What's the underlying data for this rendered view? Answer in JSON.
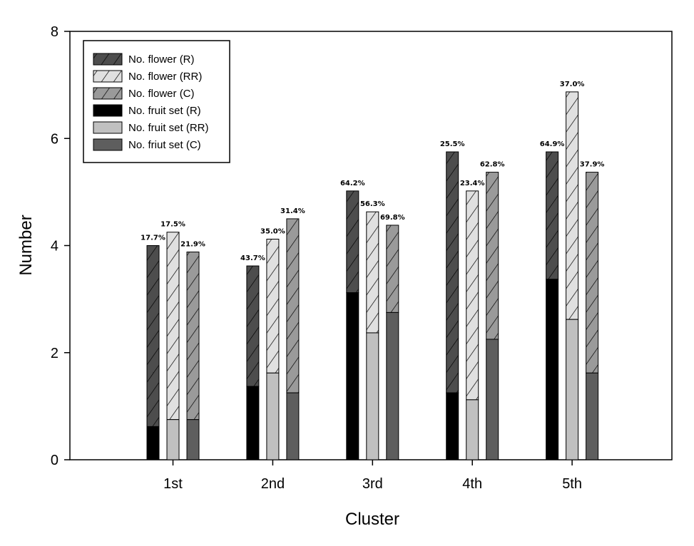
{
  "chart_data": {
    "type": "bar",
    "stacked": "overlay",
    "categories": [
      "1st",
      "2nd",
      "3rd",
      "4th",
      "5th"
    ],
    "xlabel": "Cluster",
    "ylabel": "Number",
    "ylim": [
      0,
      8
    ],
    "yticks": [
      0,
      2,
      4,
      6,
      8
    ],
    "grid": false,
    "legend_position": "top-left",
    "groups": [
      "R",
      "RR",
      "C"
    ],
    "series": [
      {
        "name": "No. flower (R)",
        "group": "R",
        "kind": "flower",
        "pattern": "hatch",
        "fill": "#4d4d4d",
        "values": [
          4.0,
          3.62,
          5.02,
          5.75,
          5.75
        ]
      },
      {
        "name": "No. flower (RR)",
        "group": "RR",
        "kind": "flower",
        "pattern": "hatch",
        "fill": "#e0e0e0",
        "values": [
          4.25,
          4.12,
          4.63,
          5.02,
          6.87
        ]
      },
      {
        "name": "No. flower (C)",
        "group": "C",
        "kind": "flower",
        "pattern": "hatch",
        "fill": "#9a9a9a",
        "values": [
          3.88,
          4.5,
          4.38,
          5.37,
          5.37
        ]
      },
      {
        "name": "No. fruit set (R)",
        "group": "R",
        "kind": "fruit",
        "pattern": "solid",
        "fill": "#000000",
        "values": [
          0.62,
          1.37,
          3.12,
          1.25,
          3.37
        ]
      },
      {
        "name": "No. fruit set (RR)",
        "group": "RR",
        "kind": "fruit",
        "pattern": "solid",
        "fill": "#c0c0c0",
        "values": [
          0.75,
          1.62,
          2.37,
          1.12,
          2.62
        ]
      },
      {
        "name": "No. friut set (C)",
        "group": "C",
        "kind": "fruit",
        "pattern": "solid",
        "fill": "#5e5e5e",
        "values": [
          0.75,
          1.25,
          2.75,
          2.25,
          1.62
        ]
      }
    ],
    "percent_labels": {
      "R": [
        "17.7%",
        "43.7%",
        "64.2%",
        "25.5%",
        "64.9%"
      ],
      "RR": [
        "17.5%",
        "35.0%",
        "56.3%",
        "23.4%",
        "37.0%"
      ],
      "C": [
        "21.9%",
        "31.4%",
        "69.8%",
        "62.8%",
        "37.9%"
      ]
    }
  }
}
